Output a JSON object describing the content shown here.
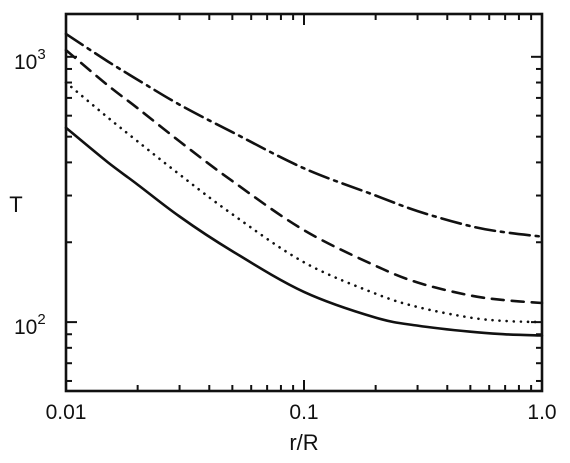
{
  "chart_data": {
    "type": "line",
    "xlabel": "r/R",
    "ylabel": "T",
    "xscale": "log",
    "yscale": "log",
    "xlim": [
      0.01,
      1.0
    ],
    "ylim": [
      55,
      1450
    ],
    "x_tick_labels": [
      "0.01",
      "0.1",
      "1.0"
    ],
    "x_ticks": [
      0.01,
      0.1,
      1.0
    ],
    "y_tick_labels": [
      {
        "base": "10",
        "exp": "3",
        "value": 1000
      },
      {
        "base": "10",
        "exp": "2",
        "value": 100
      }
    ],
    "grid": false,
    "legend": "none",
    "series": [
      {
        "style": "dash-dot",
        "x": [
          0.01,
          0.015,
          0.02,
          0.03,
          0.05,
          0.1,
          0.2,
          0.3,
          0.5,
          0.7,
          1.0
        ],
        "y": [
          1220,
          960,
          820,
          660,
          520,
          380,
          300,
          262,
          230,
          218,
          210
        ]
      },
      {
        "style": "dashed",
        "x": [
          0.01,
          0.015,
          0.02,
          0.03,
          0.05,
          0.1,
          0.2,
          0.3,
          0.5,
          0.7,
          1.0
        ],
        "y": [
          1060,
          780,
          640,
          480,
          340,
          222,
          163,
          141,
          126,
          121,
          118
        ]
      },
      {
        "style": "dotted",
        "x": [
          0.01,
          0.015,
          0.02,
          0.03,
          0.05,
          0.1,
          0.2,
          0.3,
          0.5,
          0.7,
          1.0
        ],
        "y": [
          800,
          590,
          480,
          360,
          255,
          168,
          128,
          114,
          104,
          101,
          100
        ]
      },
      {
        "style": "solid",
        "x": [
          0.01,
          0.015,
          0.02,
          0.03,
          0.05,
          0.1,
          0.2,
          0.3,
          0.5,
          0.7,
          1.0
        ],
        "y": [
          540,
          400,
          330,
          250,
          185,
          130,
          104,
          97,
          92,
          90,
          89
        ]
      }
    ]
  }
}
